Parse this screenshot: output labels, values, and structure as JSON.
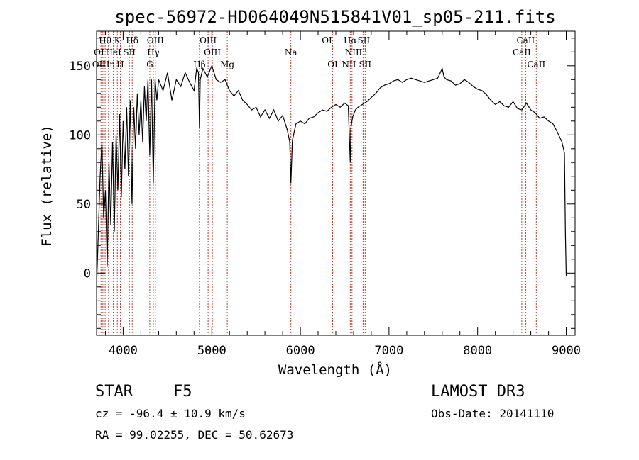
{
  "chart_data": {
    "type": "line",
    "title": "spec-56972-HD064049N515841V01_sp05-211.fits",
    "xlabel": "Wavelength (Å)",
    "ylabel": "Flux (relative)",
    "xlim": [
      3700,
      9100
    ],
    "ylim": [
      -45,
      175
    ],
    "x_ticks": [
      4000,
      5000,
      6000,
      7000,
      8000,
      9000
    ],
    "x_tick_labels": [
      "4000",
      "5000",
      "6000",
      "7000",
      "8000",
      "9000"
    ],
    "y_ticks": [
      0,
      50,
      100,
      150
    ],
    "y_tick_labels": [
      "0",
      "50",
      "100",
      "150"
    ],
    "grid": false,
    "series": [
      {
        "name": "flux",
        "x": [
          3700,
          3720,
          3740,
          3760,
          3780,
          3800,
          3820,
          3840,
          3860,
          3880,
          3900,
          3920,
          3940,
          3960,
          3980,
          4000,
          4020,
          4040,
          4060,
          4080,
          4100,
          4120,
          4140,
          4160,
          4180,
          4200,
          4220,
          4240,
          4260,
          4280,
          4300,
          4320,
          4340,
          4360,
          4380,
          4400,
          4450,
          4500,
          4550,
          4600,
          4650,
          4700,
          4750,
          4800,
          4830,
          4850,
          4861,
          4870,
          4900,
          4950,
          5000,
          5050,
          5100,
          5150,
          5200,
          5250,
          5300,
          5350,
          5400,
          5450,
          5500,
          5550,
          5600,
          5650,
          5700,
          5750,
          5800,
          5850,
          5880,
          5893,
          5910,
          5950,
          6000,
          6050,
          6100,
          6150,
          6200,
          6250,
          6300,
          6350,
          6400,
          6450,
          6500,
          6540,
          6555,
          6563,
          6570,
          6590,
          6620,
          6650,
          6700,
          6750,
          6800,
          6850,
          6900,
          6950,
          7000,
          7050,
          7100,
          7150,
          7200,
          7250,
          7300,
          7350,
          7400,
          7450,
          7500,
          7550,
          7600,
          7620,
          7650,
          7700,
          7750,
          7800,
          7850,
          7900,
          7950,
          8000,
          8050,
          8100,
          8150,
          8200,
          8250,
          8300,
          8350,
          8400,
          8450,
          8500,
          8550,
          8600,
          8650,
          8700,
          8750,
          8800,
          8850,
          8900,
          8950,
          8980,
          8990,
          9000
        ],
        "y": [
          -10,
          30,
          70,
          95,
          40,
          60,
          5,
          80,
          35,
          95,
          30,
          100,
          60,
          115,
          55,
          110,
          75,
          120,
          70,
          125,
          50,
          120,
          90,
          130,
          100,
          125,
          95,
          135,
          110,
          140,
          85,
          140,
          65,
          140,
          125,
          140,
          132,
          145,
          125,
          140,
          135,
          145,
          138,
          132,
          148,
          145,
          105,
          140,
          148,
          142,
          150,
          140,
          138,
          140,
          132,
          128,
          132,
          125,
          122,
          118,
          120,
          113,
          118,
          112,
          118,
          110,
          114,
          104,
          95,
          65,
          96,
          108,
          110,
          108,
          112,
          113,
          116,
          118,
          117,
          120,
          122,
          120,
          123,
          121,
          95,
          80,
          105,
          113,
          118,
          120,
          122,
          124,
          127,
          130,
          134,
          136,
          137,
          139,
          140,
          138,
          140,
          141,
          140,
          139,
          138,
          139,
          140,
          141,
          148,
          142,
          140,
          139,
          136,
          137,
          140,
          138,
          135,
          133,
          132,
          129,
          125,
          122,
          124,
          121,
          120,
          124,
          119,
          118,
          123,
          118,
          116,
          112,
          113,
          110,
          108,
          102,
          95,
          87,
          30,
          -2
        ]
      }
    ],
    "annotations_top": [
      {
        "label": "Hθ",
        "x": 3797
      },
      {
        "label": "K",
        "x": 3934
      },
      {
        "label": "Hδ",
        "x": 4102
      },
      {
        "label": "OIII",
        "x": 4363
      },
      {
        "label": "OIII",
        "x": 4959
      },
      {
        "label": "OI",
        "x": 6300
      },
      {
        "label": "Hα",
        "x": 6563
      },
      {
        "label": "SII",
        "x": 6716
      },
      {
        "label": "CaII",
        "x": 8542
      }
    ],
    "annotations_mid": [
      {
        "label": "OI",
        "x": 3727
      },
      {
        "label": "HeI",
        "x": 3889
      },
      {
        "label": "SII",
        "x": 4070
      },
      {
        "label": "Hγ",
        "x": 4340
      },
      {
        "label": "OIII",
        "x": 5007
      },
      {
        "label": "Na",
        "x": 5893
      },
      {
        "label": "NII",
        "x": 6583
      },
      {
        "label": "Li",
        "x": 6708
      },
      {
        "label": "CaII",
        "x": 8498
      }
    ],
    "annotations_low": [
      {
        "label": "OII",
        "x": 3727
      },
      {
        "label": "Hη",
        "x": 3835
      },
      {
        "label": "H",
        "x": 3968
      },
      {
        "label": "G",
        "x": 4300
      },
      {
        "label": "Hβ",
        "x": 4861
      },
      {
        "label": "Mg",
        "x": 5175
      },
      {
        "label": "OI",
        "x": 6364
      },
      {
        "label": "NII",
        "x": 6548
      },
      {
        "label": "SII",
        "x": 6731
      },
      {
        "label": "CaII",
        "x": 8662
      }
    ],
    "line_positions": [
      3727,
      3750,
      3771,
      3797,
      3835,
      3889,
      3934,
      3968,
      4070,
      4102,
      4300,
      4340,
      4363,
      4861,
      4959,
      5007,
      5175,
      5893,
      6300,
      6364,
      6548,
      6563,
      6583,
      6708,
      6716,
      6731,
      8498,
      8542,
      8662
    ],
    "colors": {
      "spectrum": "#000000",
      "marker_lines": "#c0392b",
      "axes": "#000000"
    }
  },
  "info": {
    "object_class": "STAR",
    "subclass": "F5",
    "survey": "LAMOST DR3",
    "redshift": "cz = -96.4 ± 10.9 km/s",
    "obs_date": "Obs-Date: 20141110",
    "coords": "RA =  99.02255, DEC =  50.62673"
  }
}
